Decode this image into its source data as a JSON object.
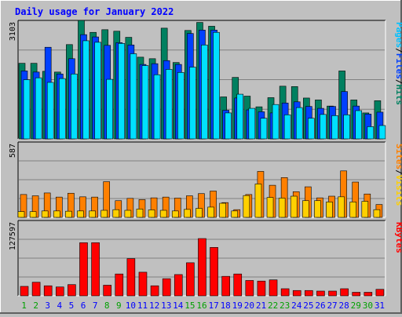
{
  "chart_data": {
    "type": "bar",
    "title": "Daily usage for January 2022",
    "categories": [
      "1",
      "2",
      "3",
      "4",
      "5",
      "6",
      "7",
      "8",
      "9",
      "10",
      "11",
      "12",
      "13",
      "14",
      "15",
      "16",
      "17",
      "18",
      "19",
      "20",
      "21",
      "22",
      "23",
      "24",
      "25",
      "26",
      "27",
      "28",
      "29",
      "30",
      "31"
    ],
    "weekend_days": [
      "1",
      "2",
      "8",
      "9",
      "15",
      "16",
      "22",
      "23",
      "29",
      "30"
    ],
    "panels": [
      {
        "id": "top",
        "ymax_label": "3103",
        "ymax": 3103,
        "right_labels": [
          {
            "text": "Hits",
            "color": "#008060"
          },
          {
            "text": "/",
            "color": "#000000"
          },
          {
            "text": "Files",
            "color": "#0040ff"
          },
          {
            "text": "/",
            "color": "#000000"
          },
          {
            "text": "Pages",
            "color": "#00c0ff"
          }
        ],
        "series": [
          {
            "name": "Hits",
            "color": "#008060",
            "values": [
              1980,
              1980,
              1770,
              1750,
              2470,
              3103,
              2790,
              2860,
              2820,
              2660,
              2140,
              2100,
              2900,
              2000,
              2840,
              3050,
              2950,
              1100,
              1610,
              1120,
              840,
              1080,
              1380,
              1370,
              1070,
              1020,
              860,
              1780,
              1020,
              680,
              1000
            ]
          },
          {
            "name": "Files",
            "color": "#0040ff",
            "values": [
              1780,
              1750,
              2400,
              1700,
              2100,
              2730,
              2670,
              2450,
              2520,
              2460,
              1950,
              1970,
              2050,
              1950,
              2760,
              2850,
              2850,
              750,
              1070,
              760,
              710,
              680,
              940,
              970,
              850,
              800,
              850,
              1240,
              860,
              650,
              700
            ]
          },
          {
            "name": "Pages",
            "color": "#00e0ff",
            "values": [
              1550,
              1600,
              1480,
              1580,
              1700,
              2570,
              2530,
              1560,
              2500,
              2230,
              1920,
              1680,
              1820,
              1740,
              1880,
              2460,
              2790,
              680,
              1170,
              800,
              540,
              900,
              630,
              820,
              540,
              640,
              610,
              630,
              740,
              320,
              350
            ]
          }
        ]
      },
      {
        "id": "middle",
        "ymax_label": "587",
        "ymax": 587,
        "right_labels": [
          {
            "text": "Visits",
            "color": "#ffd000"
          },
          {
            "text": "/",
            "color": "#000000"
          },
          {
            "text": "Sites",
            "color": "#ff8000"
          }
        ],
        "series": [
          {
            "name": "Visits",
            "color": "#ff8000",
            "values": [
              178,
              168,
              190,
              158,
              188,
              160,
              158,
              278,
              130,
              148,
              138,
              152,
              158,
              150,
              168,
              185,
              205,
              115,
              60,
              178,
              358,
              250,
              310,
              200,
              238,
              152,
              165,
              362,
              275,
              182,
              100
            ]
          },
          {
            "name": "Sites",
            "color": "#ffd000",
            "values": [
              45,
              45,
              50,
              50,
              48,
              50,
              50,
              55,
              60,
              55,
              65,
              58,
              55,
              50,
              62,
              70,
              80,
              110,
              50,
              170,
              260,
              155,
              150,
              165,
              130,
              130,
              120,
              160,
              120,
              125,
              60
            ]
          }
        ]
      },
      {
        "id": "bottom",
        "ymax_label": "127597",
        "ymax": 127597,
        "right_labels": [
          {
            "text": "KBytes",
            "color": "#ff0000"
          }
        ],
        "series": [
          {
            "name": "KBytes",
            "color": "#ff0000",
            "values": [
              16000,
              23000,
              17000,
              15000,
              19000,
              90000,
              90000,
              18000,
              37000,
              63000,
              40000,
              17000,
              29000,
              36000,
              56000,
              97000,
              82000,
              33000,
              37000,
              26000,
              25000,
              27000,
              12000,
              9000,
              9000,
              8000,
              8000,
              12000,
              6000,
              6000,
              11000
            ]
          }
        ]
      }
    ],
    "colors": {
      "background": "#c0c0c0",
      "title": "#0000ff",
      "weekday_label": "#0000ff",
      "weekend_label": "#00a000",
      "gridline": "#808080"
    }
  }
}
